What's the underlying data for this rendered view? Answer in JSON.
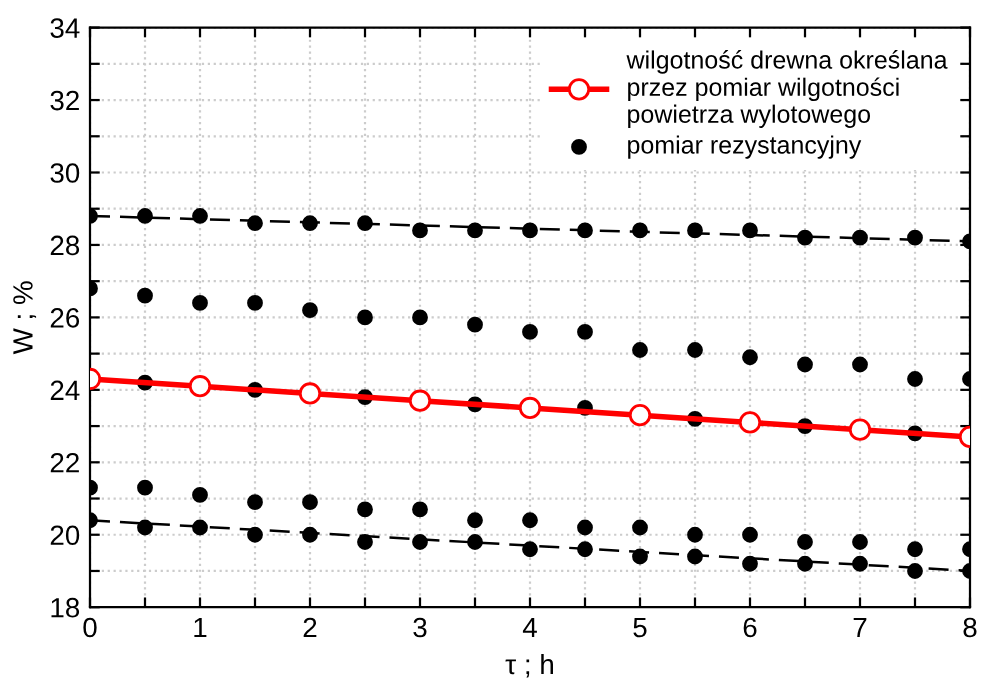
{
  "chart_data": {
    "type": "scatter",
    "xlabel": "τ ; h",
    "ylabel": "W ; %",
    "xlim": [
      0,
      8
    ],
    "ylim": [
      18,
      34
    ],
    "xticks": [
      0,
      {
        "value": 0.5,
        "label": null
      },
      1,
      {
        "value": 1.5,
        "label": null
      },
      2,
      {
        "value": 2.5,
        "label": null
      },
      3,
      {
        "value": 3.5,
        "label": null
      },
      4,
      {
        "value": 4.5,
        "label": null
      },
      5,
      {
        "value": 5.5,
        "label": null
      },
      6,
      {
        "value": 6.5,
        "label": null
      },
      7,
      {
        "value": 7.5,
        "label": null
      },
      8
    ],
    "yticks": [
      18,
      {
        "value": 19,
        "label": null
      },
      20,
      {
        "value": 21,
        "label": null
      },
      22,
      {
        "value": 23,
        "label": null
      },
      24,
      {
        "value": 25,
        "label": null
      },
      26,
      {
        "value": 27,
        "label": null
      },
      28,
      {
        "value": 29,
        "label": null
      },
      30,
      {
        "value": 31,
        "label": null
      },
      32,
      {
        "value": 33,
        "label": null
      },
      34
    ],
    "grid": true,
    "legend": "top right",
    "series": [
      {
        "name": "pomiar rezystancyjny",
        "marker": "circle",
        "color": "#000000",
        "x": [
          0,
          0.5,
          1,
          1.5,
          2,
          2.5,
          3,
          3.5,
          4,
          4.5,
          5,
          5.5,
          6,
          6.5,
          7,
          7.5,
          8
        ],
        "values": [
          28.8,
          28.8,
          28.8,
          28.6,
          28.6,
          28.6,
          28.4,
          28.4,
          28.4,
          28.4,
          28.4,
          28.4,
          28.4,
          28.2,
          28.2,
          28.2,
          28.1
        ]
      },
      {
        "marker": "circle",
        "color": "#000000",
        "x": [
          0,
          0.5,
          1,
          1.5,
          2,
          2.5,
          3,
          3.5,
          4,
          4.5,
          5,
          5.5,
          6,
          6.5,
          7,
          7.5,
          8
        ],
        "values": [
          26.8,
          26.6,
          26.4,
          26.4,
          26.2,
          26.0,
          26.0,
          25.8,
          25.6,
          25.6,
          25.1,
          25.1,
          24.9,
          24.7,
          24.7,
          24.3,
          24.3
        ]
      },
      {
        "marker": "circle",
        "color": "#000000",
        "x": [
          0.5,
          1.5,
          2.5,
          3.5,
          4.5,
          5.5,
          6.5,
          7.5
        ],
        "values": [
          24.2,
          24.0,
          23.8,
          23.6,
          23.5,
          23.2,
          23.0,
          22.8
        ]
      },
      {
        "marker": "circle",
        "color": "#000000",
        "x": [
          0,
          0.5,
          1,
          1.5,
          2,
          2.5,
          3,
          3.5,
          4,
          4.5,
          5,
          5.5,
          6,
          6.5,
          7,
          7.5,
          8
        ],
        "values": [
          21.3,
          21.3,
          21.1,
          20.9,
          20.9,
          20.7,
          20.7,
          20.4,
          20.4,
          20.2,
          20.2,
          20.0,
          20.0,
          19.8,
          19.8,
          19.6,
          19.6
        ]
      },
      {
        "marker": "circle",
        "color": "#000000",
        "x": [
          0,
          0.5,
          1,
          1.5,
          2,
          2.5,
          3,
          3.5,
          4,
          4.5,
          5,
          5.5,
          6,
          6.5,
          7,
          7.5,
          8
        ],
        "values": [
          20.4,
          20.2,
          20.2,
          20.0,
          20.0,
          19.8,
          19.8,
          19.8,
          19.6,
          19.6,
          19.4,
          19.4,
          19.2,
          19.2,
          19.2,
          19.0,
          19.0
        ]
      },
      {
        "type": "line",
        "line_style": "dashed",
        "marker": "none",
        "color": "#000000",
        "x": [
          0,
          8
        ],
        "values": [
          28.8,
          28.1
        ]
      },
      {
        "type": "line",
        "line_style": "dashed",
        "marker": "none",
        "color": "#000000",
        "x": [
          0,
          8
        ],
        "values": [
          20.4,
          19.0
        ]
      },
      {
        "name": "wilgotność drewna określana\nprzez pomiar wilgotności\npowietrza wylotowego",
        "type": "line",
        "line_style": "solid",
        "marker": "circle",
        "color": "#ff0000",
        "x": [
          0,
          1,
          2,
          3,
          4,
          5,
          6,
          7,
          8
        ],
        "values": [
          24.3,
          24.1,
          23.9,
          23.7,
          23.5,
          23.3,
          23.1,
          22.9,
          22.7
        ]
      }
    ]
  }
}
